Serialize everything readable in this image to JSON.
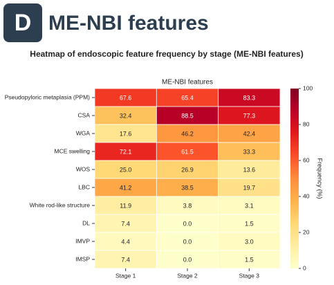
{
  "header": {
    "badge": "D",
    "title": "ME-NBI features"
  },
  "chart_data": {
    "type": "heatmap",
    "title": "Heatmap of endoscopic feature frequency by stage (ME-NBI features)",
    "subtitle": "ME-NBI features",
    "x": [
      "Stage 1",
      "Stage 2",
      "Stage 3"
    ],
    "categories": [
      "Pseudopyloric metaplasia (PPM)",
      "CSA",
      "WGA",
      "MCE swelling",
      "WOS",
      "LBC",
      "White rod-like structure",
      "DL",
      "IMVP",
      "IMSP"
    ],
    "values": [
      [
        67.6,
        65.4,
        83.3
      ],
      [
        32.4,
        88.5,
        77.3
      ],
      [
        17.6,
        46.2,
        42.4
      ],
      [
        72.1,
        61.5,
        33.3
      ],
      [
        25,
        26.9,
        13.6
      ],
      [
        41.2,
        38.5,
        19.7
      ],
      [
        11.9,
        3.8,
        3.1
      ],
      [
        7.4,
        0,
        1.5
      ],
      [
        4.4,
        0,
        3
      ],
      [
        7.4,
        0,
        1.5
      ]
    ],
    "value_labels": [
      [
        "67.6",
        "65.4",
        "83.3"
      ],
      [
        "32.4",
        "88.5",
        "77.3"
      ],
      [
        "17.6",
        "46.2",
        "42.4"
      ],
      [
        "72.1",
        "61.5",
        "33.3"
      ],
      [
        "25.0",
        "26.9",
        "13.6"
      ],
      [
        "41.2",
        "38.5",
        "19.7"
      ],
      [
        "11.9",
        "3.8",
        "3.1"
      ],
      [
        "7.4",
        "0.0",
        "1.5"
      ],
      [
        "4.4",
        "0.0",
        "3.0"
      ],
      [
        "7.4",
        "0.0",
        "1.5"
      ]
    ],
    "colormap": "YlOrRd",
    "clim": [
      0,
      100
    ],
    "cticks": [
      0,
      20,
      40,
      60,
      80,
      100
    ],
    "colorbar_label": "Frequency (%)"
  }
}
